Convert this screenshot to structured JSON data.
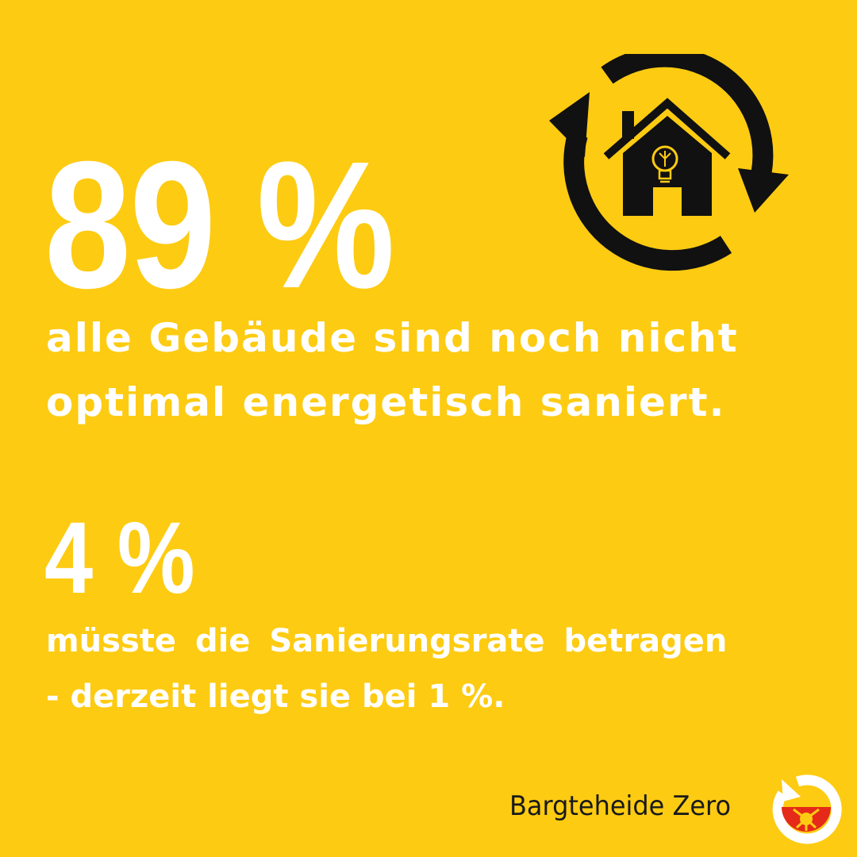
{
  "headline": {
    "stat": "89 %",
    "line1": "alle Gebäude sind noch nicht",
    "line2": "optimal energetisch saniert."
  },
  "secondary": {
    "stat": "4 %",
    "line1": "müsste die Sanierungsrate betragen",
    "line2": "- derzeit liegt sie bei 1 %."
  },
  "footer": {
    "brand": "Bargteheide Zero"
  },
  "icons": {
    "illustration": "house-recycle-arrows-icon",
    "logo": "bargteheide-zero-logo-icon"
  },
  "colors": {
    "background": "#FDCB12",
    "text": "#FFFFFF",
    "icon": "#111111",
    "logo_red": "#E52A1A"
  }
}
